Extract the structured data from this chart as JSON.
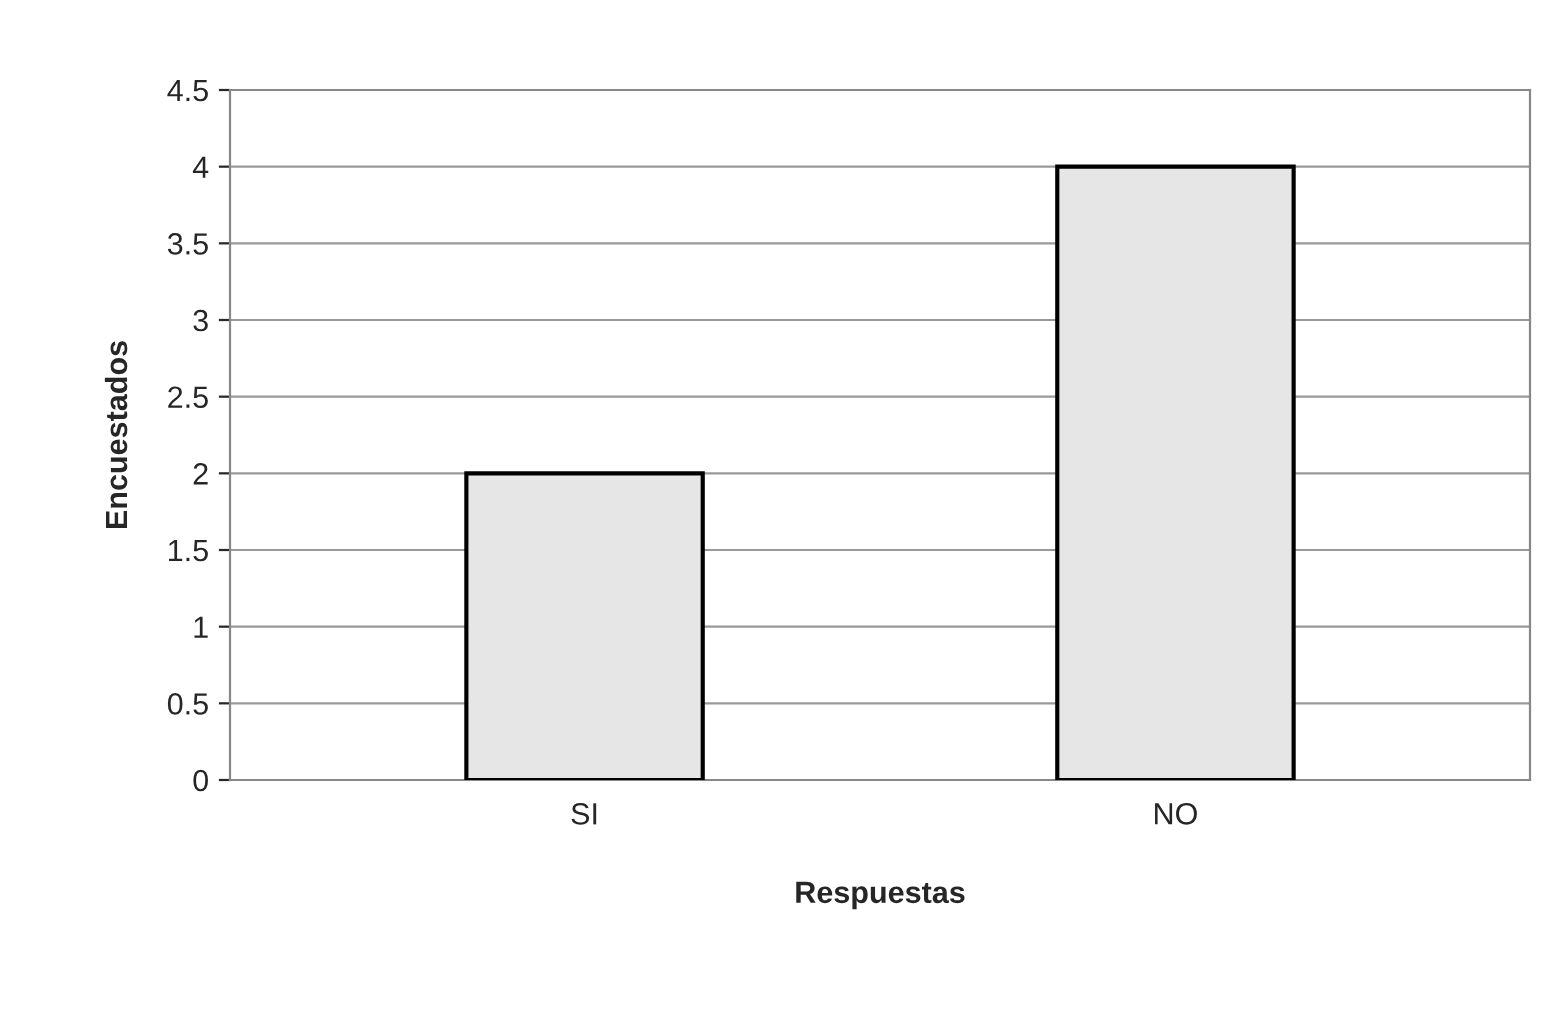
{
  "chart_data": {
    "type": "bar",
    "xlabel": "Respuestas",
    "ylabel": "Encuestados",
    "categories": [
      "SI",
      "NO"
    ],
    "values": [
      2,
      4
    ],
    "color": "#e6e6e6",
    "ylim": [
      0,
      4.5
    ],
    "yticks": [
      0,
      0.5,
      1,
      1.5,
      2,
      2.5,
      3,
      3.5,
      4,
      4.5
    ],
    "grid": "y"
  }
}
